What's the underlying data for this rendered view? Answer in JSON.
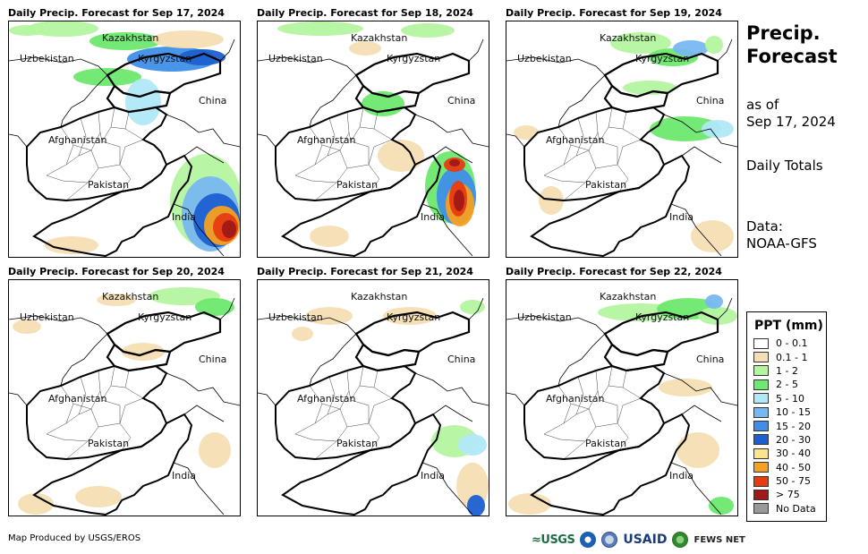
{
  "panels": [
    {
      "title": "Daily Precip. Forecast for Sep 17, 2024"
    },
    {
      "title": "Daily Precip. Forecast for Sep 18, 2024"
    },
    {
      "title": "Daily Precip. Forecast for Sep 19, 2024"
    },
    {
      "title": "Daily Precip. Forecast for Sep 20, 2024"
    },
    {
      "title": "Daily Precip. Forecast for Sep 21, 2024"
    },
    {
      "title": "Daily Precip. Forecast for Sep 22, 2024"
    }
  ],
  "map_labels": {
    "kazakhstan": "Kazakhstan",
    "uzbekistan": "Uzbekistan",
    "kyrgyzstan": "Kyrgyzstan",
    "china": "China",
    "afghanistan": "Afghanistan",
    "pakistan": "Pakistan",
    "india": "India"
  },
  "sidebar": {
    "title_line1": "Precip.",
    "title_line2": "Forecast",
    "asof_line1": "as of",
    "asof_line2": "Sep 17, 2024",
    "totals": "Daily Totals",
    "data_line1": "Data:",
    "data_line2": "NOAA-GFS"
  },
  "legend": {
    "title": "PPT (mm)",
    "items": [
      {
        "label": "0 - 0.1",
        "color": "#ffffff"
      },
      {
        "label": "0.1 - 1",
        "color": "#f5deb3"
      },
      {
        "label": "1 - 2",
        "color": "#b4f5a0"
      },
      {
        "label": "2 - 5",
        "color": "#6ee86e"
      },
      {
        "label": "5 - 10",
        "color": "#b0e8f8"
      },
      {
        "label": "10 - 15",
        "color": "#78b8f0"
      },
      {
        "label": "15 - 20",
        "color": "#3f8fe8"
      },
      {
        "label": "20 - 30",
        "color": "#1e5fd0"
      },
      {
        "label": "30 - 40",
        "color": "#fbe48a"
      },
      {
        "label": "40 - 50",
        "color": "#f5a020"
      },
      {
        "label": "50 - 75",
        "color": "#e83c10"
      },
      {
        "label": "> 75",
        "color": "#a01818"
      },
      {
        "label": "No Data",
        "color": "#999999"
      }
    ]
  },
  "footer": {
    "credit": "Map Produced by USGS/EROS",
    "usgs": "≈USGS",
    "usaid": "USAID",
    "fews": "FEWS NET"
  }
}
